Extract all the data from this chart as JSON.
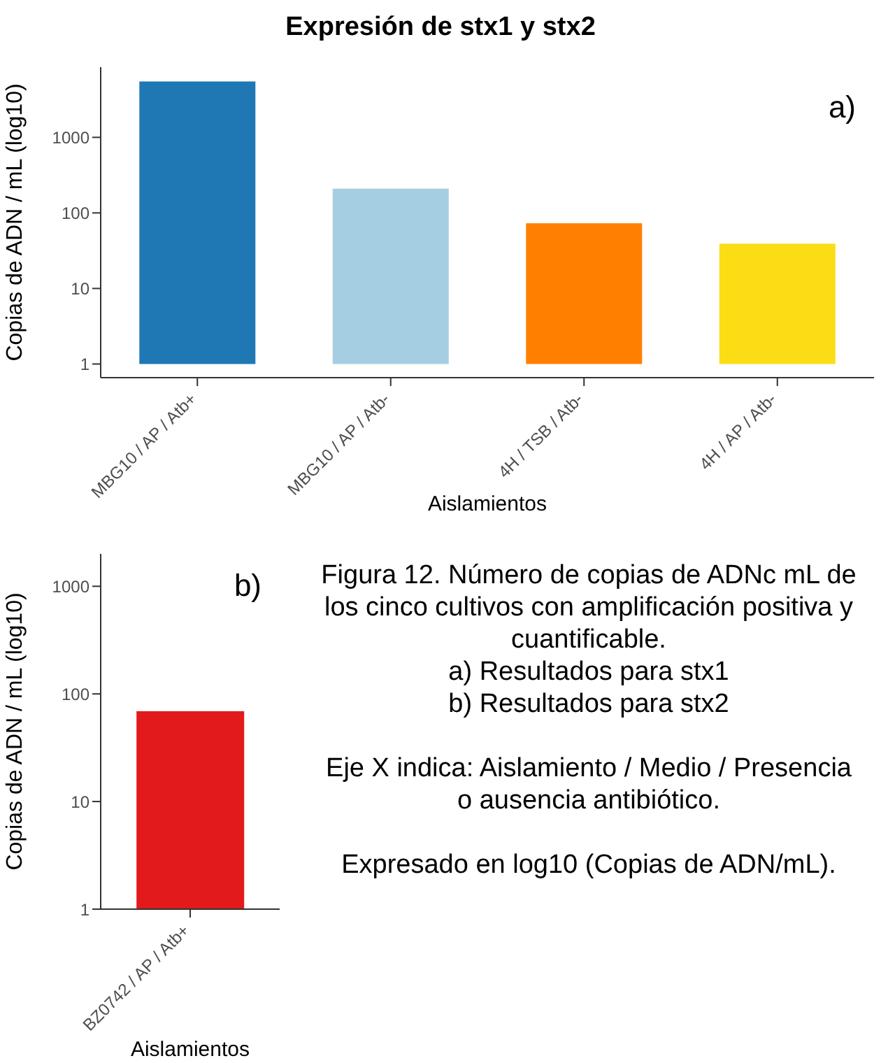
{
  "chart_data": [
    {
      "type": "bar",
      "title": "Expresión de stx1 y stx2",
      "xlabel": "Aislamientos",
      "ylabel": "Copias de ADN / mL (log10)",
      "annotations": [
        "a)"
      ],
      "categories": [
        "MBG10 / AP / Atb+",
        "MBG10 / AP / Atb-",
        "4H / TSB / Atb-",
        "4H / AP / Atb-"
      ],
      "values": [
        5499,
        209,
        72,
        38
      ],
      "base": [
        1,
        1,
        1,
        1
      ],
      "colors": [
        "#1f78b4",
        "#a6cee3",
        "#ff7f00",
        "#fadd14"
      ],
      "log": true,
      "ylim": [
        0.66,
        8500
      ],
      "yticks": [
        1,
        10,
        100,
        1000
      ]
    },
    {
      "type": "bar",
      "xlabel": "Aislamientos",
      "ylabel": "Copias de ADN / mL (log10)",
      "annotations": [
        "b)"
      ],
      "categories": [
        "BZ0742 / AP / Atb+"
      ],
      "values": [
        69
      ],
      "colors": [
        "#e31a1c"
      ],
      "log": true,
      "ylim": [
        1,
        2000
      ],
      "yticks": [
        1,
        10,
        100,
        1000
      ]
    },
    {
      "type": "other",
      "annotations": [
        "Figura 12. Número de copias de ADNc mL de los cinco cultivos con amplificación positiva y cuantificable.",
        "a) Resultados para stx1",
        "b) Resultados para stx2",
        "Eje X indica: Aislamiento / Medio / Presencia o ausencia antibiótico.",
        "Expresado en log10 (Copias de ADN/mL)."
      ]
    }
  ]
}
